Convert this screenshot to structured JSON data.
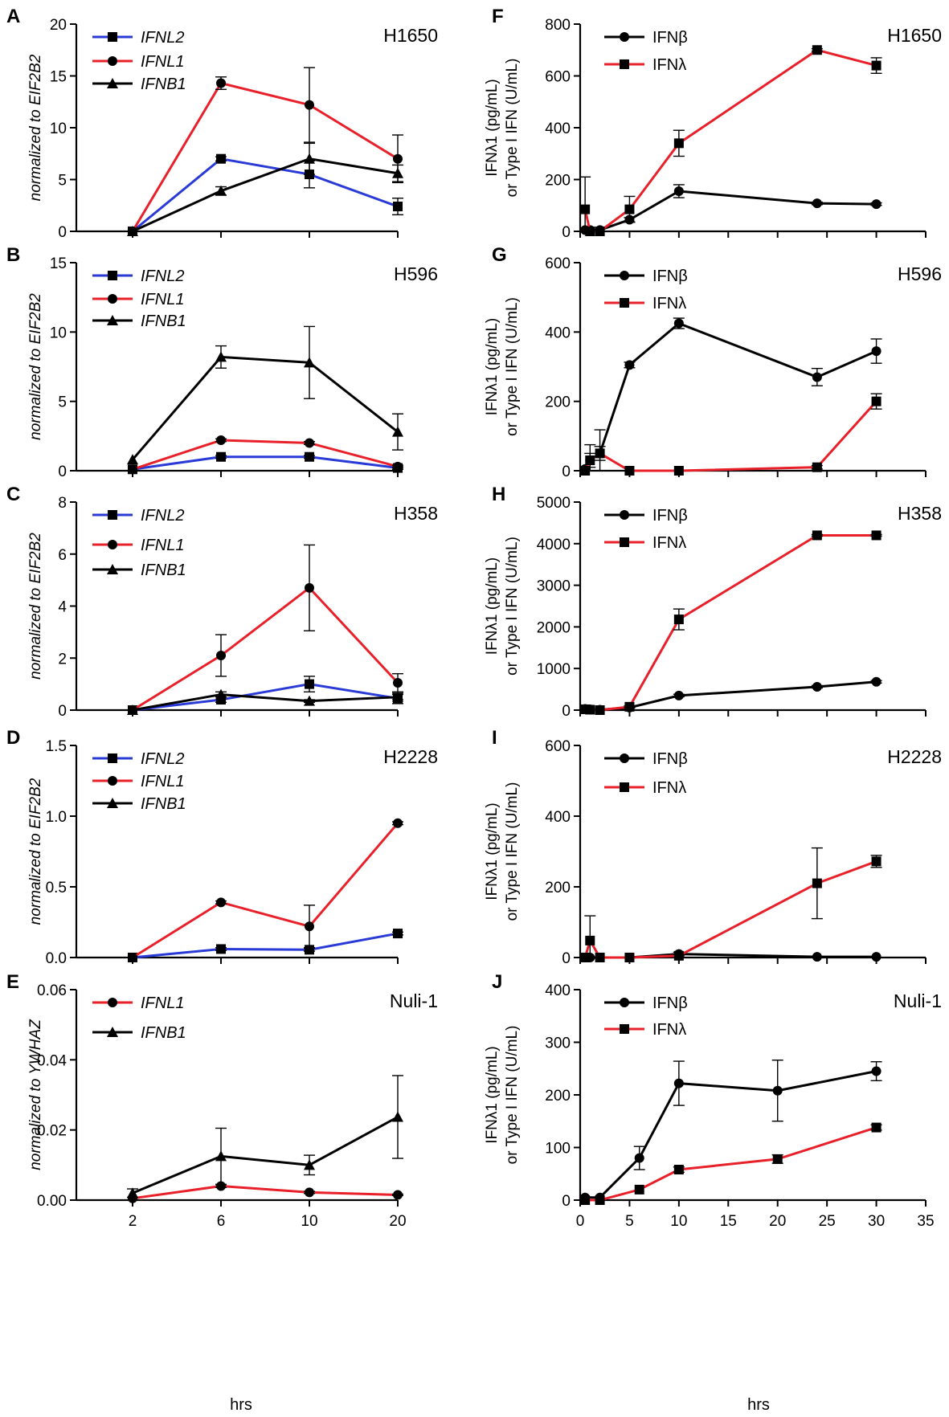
{
  "xlabel_left": "hrs",
  "xlabel_right": "hrs",
  "colors": {
    "blue": "#2a3ad6",
    "red": "#e8202a",
    "black": "#000000"
  },
  "chart_data": [
    {
      "type": "line",
      "panel": "A",
      "cell_line": "H1650",
      "ylabel": "normalized to EIF2B2",
      "ylim": [
        0,
        20
      ],
      "yticks": [
        "0",
        "5",
        "10",
        "15",
        "20"
      ],
      "categories": [
        "2",
        "6",
        "10",
        "20"
      ],
      "show_xtick_labels": false,
      "series": [
        {
          "name": "IFNL2",
          "color": "#2a3ad6",
          "marker": "square",
          "values": [
            0,
            7.0,
            5.5,
            2.4
          ],
          "errors": [
            0,
            0.2,
            1.3,
            0.8
          ]
        },
        {
          "name": "IFNL1",
          "color": "#e8202a",
          "marker": "circle",
          "values": [
            0,
            14.3,
            12.2,
            7.0
          ],
          "errors": [
            0,
            0.6,
            3.6,
            2.3
          ]
        },
        {
          "name": "IFNB1",
          "color": "#000000",
          "marker": "triangle",
          "values": [
            0,
            3.9,
            7.0,
            5.6
          ],
          "errors": [
            0,
            0.4,
            1.5,
            0.8
          ]
        }
      ]
    },
    {
      "type": "line",
      "panel": "B",
      "cell_line": "H596",
      "ylabel": "normalized to EIF2B2",
      "ylim": [
        0,
        15
      ],
      "yticks": [
        "0",
        "5",
        "10",
        "15"
      ],
      "categories": [
        "2",
        "6",
        "10",
        "20"
      ],
      "show_xtick_labels": false,
      "series": [
        {
          "name": "IFNL2",
          "color": "#2a3ad6",
          "marker": "square",
          "values": [
            0.1,
            1.0,
            1.0,
            0.2
          ],
          "errors": [
            0,
            0.1,
            0.1,
            0.1
          ]
        },
        {
          "name": "IFNL1",
          "color": "#e8202a",
          "marker": "circle",
          "values": [
            0.1,
            2.2,
            2.0,
            0.3
          ],
          "errors": [
            0,
            0.1,
            0.1,
            0.1
          ]
        },
        {
          "name": "IFNB1",
          "color": "#000000",
          "marker": "triangle",
          "values": [
            0.8,
            8.2,
            7.8,
            2.8
          ],
          "errors": [
            0,
            0.8,
            2.6,
            1.3
          ]
        }
      ]
    },
    {
      "type": "line",
      "panel": "C",
      "cell_line": "H358",
      "ylabel": "normalized to EIF2B2",
      "ylim": [
        0,
        8
      ],
      "yticks": [
        "0",
        "2",
        "4",
        "6",
        "8"
      ],
      "categories": [
        "2",
        "6",
        "10",
        "20"
      ],
      "show_xtick_labels": false,
      "series": [
        {
          "name": "IFNL2",
          "color": "#2a3ad6",
          "marker": "square",
          "values": [
            0,
            0.4,
            1.0,
            0.45
          ],
          "errors": [
            0,
            0.1,
            0.3,
            0.2
          ]
        },
        {
          "name": "IFNL1",
          "color": "#e8202a",
          "marker": "circle",
          "values": [
            0,
            2.1,
            4.7,
            1.05
          ],
          "errors": [
            0,
            0.8,
            1.65,
            0.35
          ]
        },
        {
          "name": "IFNB1",
          "color": "#000000",
          "marker": "triangle",
          "values": [
            0,
            0.6,
            0.35,
            0.5
          ],
          "errors": [
            0,
            0.1,
            0.05,
            0.1
          ]
        }
      ]
    },
    {
      "type": "line",
      "panel": "D",
      "cell_line": "H2228",
      "ylabel": "normalized to EIF2B2",
      "ylim": [
        0,
        1.5
      ],
      "yticks": [
        "0.0",
        "0.5",
        "1.0",
        "1.5"
      ],
      "categories": [
        "2",
        "6",
        "10",
        "20"
      ],
      "show_xtick_labels": false,
      "series": [
        {
          "name": "IFNL2",
          "color": "#2a3ad6",
          "marker": "square",
          "values": [
            0,
            0.06,
            0.055,
            0.17
          ],
          "errors": [
            0,
            0.01,
            0.01,
            0.01
          ]
        },
        {
          "name": "IFNL1",
          "color": "#e8202a",
          "marker": "circle",
          "values": [
            0,
            0.39,
            0.22,
            0.95
          ],
          "errors": [
            0,
            0.01,
            0.15,
            0.01
          ]
        },
        {
          "name": "IFNB1",
          "color": "#000000",
          "marker": "triangle",
          "values": [
            0,
            0,
            0,
            0
          ],
          "errors": [
            0,
            0,
            0,
            0
          ],
          "hidden_line": true
        }
      ]
    },
    {
      "type": "line",
      "panel": "E",
      "cell_line": "Nuli-1",
      "ylabel": "normalized to YWHAZ",
      "ylim": [
        0,
        0.06
      ],
      "yticks": [
        "0.00",
        "0.02",
        "0.04",
        "0.06"
      ],
      "categories": [
        "2",
        "6",
        "10",
        "20"
      ],
      "show_xtick_labels": true,
      "series": [
        {
          "name": "IFNL1",
          "color": "#e8202a",
          "marker": "circle",
          "values": [
            0.0005,
            0.004,
            0.0022,
            0.0015
          ],
          "errors": [
            0,
            0.0004,
            0.0003,
            0.0002
          ]
        },
        {
          "name": "IFNB1",
          "color": "#000000",
          "marker": "triangle",
          "values": [
            0.002,
            0.0125,
            0.01,
            0.0237
          ],
          "errors": [
            0.0012,
            0.008,
            0.0028,
            0.0118
          ]
        }
      ]
    },
    {
      "type": "line",
      "panel": "F",
      "cell_line": "H1650",
      "ylabel": [
        "IFNλ1 (pg/mL)",
        "or Type I IFN (U/mL)"
      ],
      "ylim": [
        0,
        800
      ],
      "yticks": [
        0,
        200,
        400,
        600,
        800
      ],
      "xlim": [
        0,
        35
      ],
      "xticks": [
        0,
        5,
        10,
        15,
        20,
        25,
        30,
        35
      ],
      "show_xtick_labels": false,
      "series": [
        {
          "name": "IFNβ",
          "color": "#000000",
          "marker": "circle",
          "x": [
            0.5,
            1,
            2,
            5,
            10,
            24,
            30
          ],
          "values": [
            5,
            5,
            5,
            45,
            155,
            108,
            105
          ],
          "errors": [
            0,
            0,
            0,
            8,
            25,
            5,
            5
          ]
        },
        {
          "name": "IFNλ",
          "color": "#e8202a",
          "marker": "square",
          "x": [
            0.5,
            1,
            2,
            5,
            10,
            24,
            30
          ],
          "values": [
            85,
            0,
            0,
            85,
            340,
            700,
            640
          ],
          "errors": [
            125,
            0,
            0,
            50,
            50,
            5,
            30
          ]
        }
      ]
    },
    {
      "type": "line",
      "panel": "G",
      "cell_line": "H596",
      "ylabel": [
        "IFNλ1 (pg/mL)",
        "or Type I IFN (U/mL)"
      ],
      "ylim": [
        0,
        600
      ],
      "yticks": [
        0,
        200,
        400,
        600
      ],
      "xlim": [
        0,
        35
      ],
      "xticks": [
        0,
        5,
        10,
        15,
        20,
        25,
        30,
        35
      ],
      "show_xtick_labels": false,
      "series": [
        {
          "name": "IFNβ",
          "color": "#000000",
          "marker": "circle",
          "x": [
            0.5,
            1,
            2,
            5,
            10,
            24,
            30
          ],
          "values": [
            5,
            30,
            50,
            305,
            425,
            270,
            345
          ],
          "errors": [
            0,
            20,
            20,
            8,
            15,
            25,
            35
          ]
        },
        {
          "name": "IFNλ",
          "color": "#e8202a",
          "marker": "square",
          "x": [
            0.5,
            1,
            2,
            5,
            10,
            24,
            30
          ],
          "values": [
            0,
            30,
            50,
            0,
            0,
            10,
            200
          ],
          "errors": [
            0,
            45,
            68,
            0,
            0,
            5,
            22
          ]
        }
      ]
    },
    {
      "type": "line",
      "panel": "H",
      "cell_line": "H358",
      "ylabel": [
        "IFNλ1 (pg/mL)",
        "or Type I IFN (U/mL)"
      ],
      "ylim": [
        0,
        5000
      ],
      "yticks": [
        0,
        1000,
        2000,
        3000,
        4000,
        5000
      ],
      "xlim": [
        0,
        35
      ],
      "xticks": [
        0,
        5,
        10,
        15,
        20,
        25,
        30,
        35
      ],
      "show_xtick_labels": false,
      "series": [
        {
          "name": "IFNβ",
          "color": "#000000",
          "marker": "circle",
          "x": [
            0.5,
            1,
            2,
            5,
            10,
            24,
            30
          ],
          "values": [
            30,
            20,
            10,
            60,
            350,
            560,
            680
          ],
          "errors": [
            0,
            0,
            0,
            10,
            30,
            30,
            30
          ]
        },
        {
          "name": "IFNλ",
          "color": "#e8202a",
          "marker": "square",
          "x": [
            0.5,
            1,
            2,
            5,
            10,
            24,
            30
          ],
          "values": [
            20,
            10,
            0,
            80,
            2180,
            4200,
            4200
          ],
          "errors": [
            0,
            0,
            0,
            20,
            250,
            20,
            20
          ]
        }
      ]
    },
    {
      "type": "line",
      "panel": "I",
      "cell_line": "H2228",
      "ylabel": [
        "IFNλ1 (pg/mL)",
        "or Type I IFN (U/mL)"
      ],
      "ylim": [
        0,
        600
      ],
      "yticks": [
        0,
        200,
        400,
        600
      ],
      "xlim": [
        0,
        35
      ],
      "xticks": [
        0,
        5,
        10,
        15,
        20,
        25,
        30,
        35
      ],
      "show_xtick_labels": false,
      "series": [
        {
          "name": "IFNβ",
          "color": "#000000",
          "marker": "circle",
          "x": [
            0.5,
            1,
            2,
            5,
            10,
            24,
            30
          ],
          "values": [
            0,
            0,
            0,
            0,
            10,
            2,
            2
          ],
          "errors": [
            0,
            0,
            0,
            0,
            5,
            0,
            0
          ]
        },
        {
          "name": "IFNλ",
          "color": "#e8202a",
          "marker": "square",
          "x": [
            0.5,
            1,
            2,
            5,
            10,
            24,
            30
          ],
          "values": [
            0,
            48,
            0,
            0,
            5,
            210,
            272
          ],
          "errors": [
            0,
            70,
            0,
            0,
            0,
            100,
            17
          ]
        }
      ]
    },
    {
      "type": "line",
      "panel": "J",
      "cell_line": "Nuli-1",
      "ylabel": [
        "IFNλ1 (pg/mL)",
        "or Type I IFN (U/mL)"
      ],
      "ylim": [
        0,
        400
      ],
      "yticks": [
        0,
        100,
        200,
        300,
        400
      ],
      "xlim": [
        0,
        35
      ],
      "xticks": [
        0,
        5,
        10,
        15,
        20,
        25,
        30,
        35
      ],
      "show_xtick_labels": true,
      "series": [
        {
          "name": "IFNβ",
          "color": "#000000",
          "marker": "circle",
          "x": [
            0.5,
            2,
            6,
            10,
            20,
            30
          ],
          "values": [
            5,
            5,
            80,
            222,
            208,
            245
          ],
          "errors": [
            0,
            0,
            22,
            42,
            58,
            18
          ]
        },
        {
          "name": "IFNλ",
          "color": "#e8202a",
          "marker": "square",
          "x": [
            0.5,
            2,
            6,
            10,
            20,
            30
          ],
          "values": [
            0,
            0,
            20,
            58,
            78,
            138
          ],
          "errors": [
            0,
            0,
            0,
            5,
            8,
            5
          ]
        }
      ]
    }
  ]
}
